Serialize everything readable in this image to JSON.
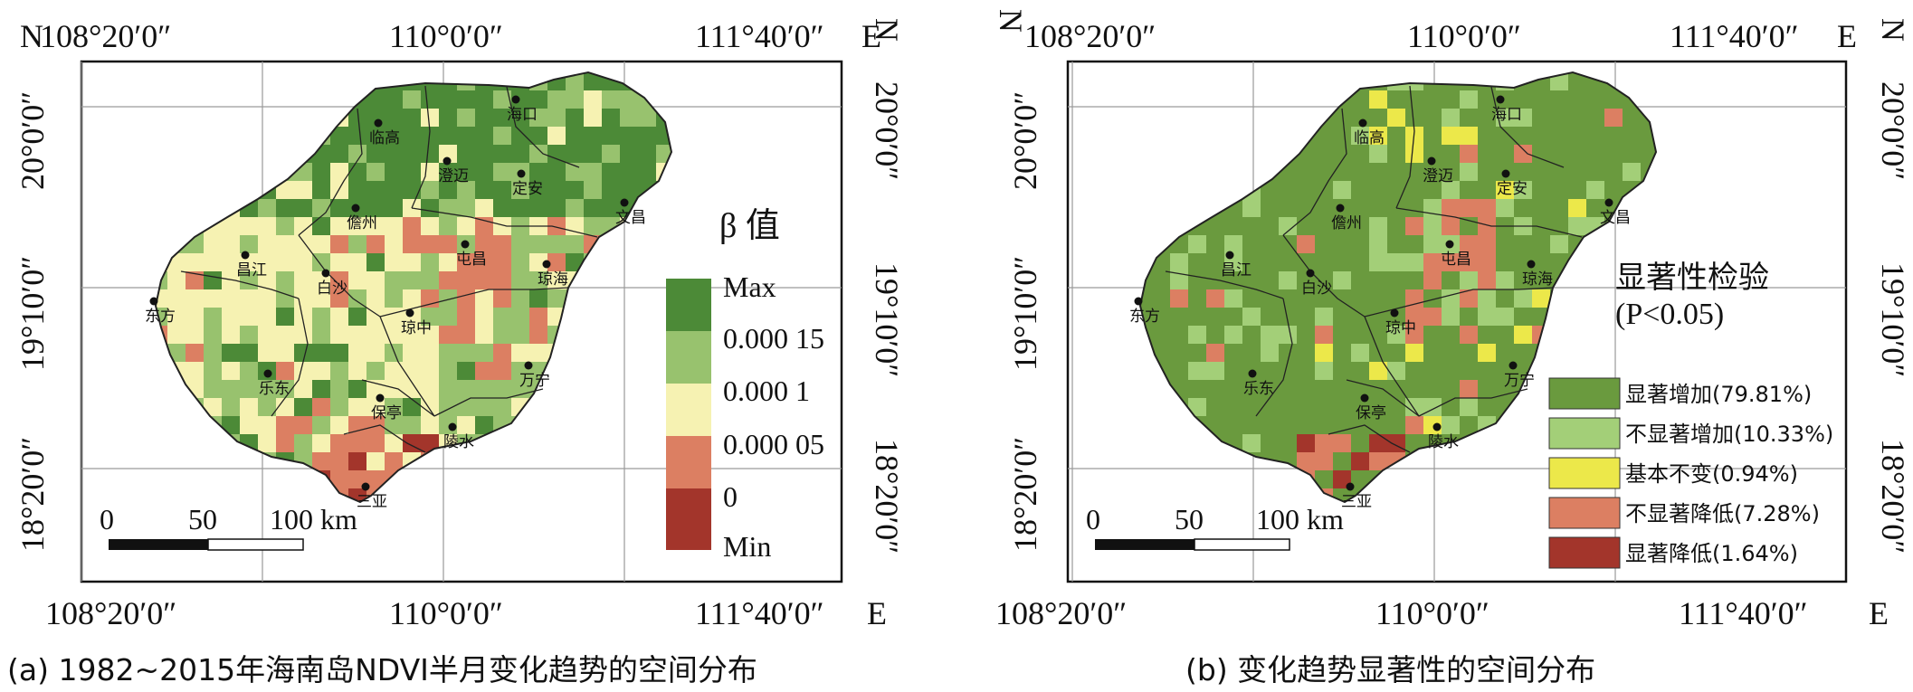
{
  "panel_a": {
    "caption": "(a) 1982~2015年海南岛NDVI半月变化趋势的空间分布",
    "top_labels": [
      "108°20′0″",
      "110°0′0″",
      "111°40′0″",
      "E"
    ],
    "bottom_labels": [
      "108°20′0″",
      "110°0′0″",
      "111°40′0″",
      "E"
    ],
    "lat_labels": [
      "20°0′0″",
      "19°10′0″",
      "18°20′0″"
    ],
    "n_label": "N",
    "legend": {
      "title": "β 值",
      "items": [
        {
          "label": "Max",
          "color": "#4c8a37"
        },
        {
          "label": "0.000 15",
          "color": "#98c26e"
        },
        {
          "label": "0.000 1",
          "color": "#f6f2b2"
        },
        {
          "label": "0.000 05",
          "color": "#dc7f62"
        },
        {
          "label": "0",
          "color": "#a3352b"
        },
        {
          "label": "Min",
          "color": ""
        }
      ]
    },
    "scalebar": {
      "labels": [
        "0",
        "50",
        "100 km"
      ]
    }
  },
  "panel_b": {
    "caption": "(b) 变化趋势显著性的空间分布",
    "top_labels": [
      "108°20′0″",
      "110°0′0″",
      "111°40′0″",
      "E"
    ],
    "bottom_labels": [
      "108°20′0″",
      "110°0′0″",
      "111°40′0″",
      "E"
    ],
    "lat_labels": [
      "20°0′0″",
      "19°10′0″",
      "18°20′0″"
    ],
    "n_label": "N",
    "legend": {
      "title": "显著性检验",
      "subtitle": "(P<0.05)",
      "items": [
        {
          "label": "显著增加(79.81%)",
          "color": "#6a9a3e"
        },
        {
          "label": "不显著增加(10.33%)",
          "color": "#a3cf78"
        },
        {
          "label": "基本不变(0.94%)",
          "color": "#ece84a"
        },
        {
          "label": "不显著降低(7.28%)",
          "color": "#dc7f62"
        },
        {
          "label": "显著降低(1.64%)",
          "color": "#a3352b"
        }
      ]
    },
    "scalebar": {
      "labels": [
        "0",
        "50",
        "100 km"
      ]
    }
  },
  "cities": [
    {
      "name": "海口"
    },
    {
      "name": "临高"
    },
    {
      "name": "澄迈"
    },
    {
      "name": "定安"
    },
    {
      "name": "文昌"
    },
    {
      "name": "儋州"
    },
    {
      "name": "昌江"
    },
    {
      "name": "白沙"
    },
    {
      "name": "屯昌"
    },
    {
      "name": "琼海"
    },
    {
      "name": "东方"
    },
    {
      "name": "琼中"
    },
    {
      "name": "乐东"
    },
    {
      "name": "万宁"
    },
    {
      "name": "保亭"
    },
    {
      "name": "陵水"
    },
    {
      "name": "三亚"
    }
  ]
}
